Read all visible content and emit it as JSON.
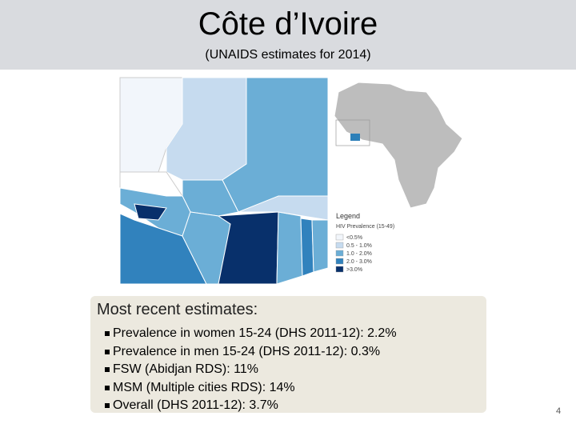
{
  "header": {
    "title": "Côte d’Ivoire",
    "subtitle": "(UNAIDS estimates for 2014)"
  },
  "legend": {
    "title": "Legend",
    "subtitle": "HIV Prevalence (15-49)",
    "items": [
      "<0.5%",
      "0.5 - 1.0%",
      "1.0 - 2.0%",
      "2.0 - 3.0%",
      ">3.0%"
    ]
  },
  "box": {
    "heading": "Most recent estimates:",
    "bullets": [
      "Prevalence in women 15-24 (DHS 2011-12): 2.2%",
      "Prevalence in men 15-24 (DHS 2011-12): 0.3%",
      "FSW (Abidjan RDS): 11%",
      "MSM (Multiple cities RDS): 14%",
      "Overall (DHS 2011-12): 3.7%"
    ]
  },
  "page_number": "4"
}
